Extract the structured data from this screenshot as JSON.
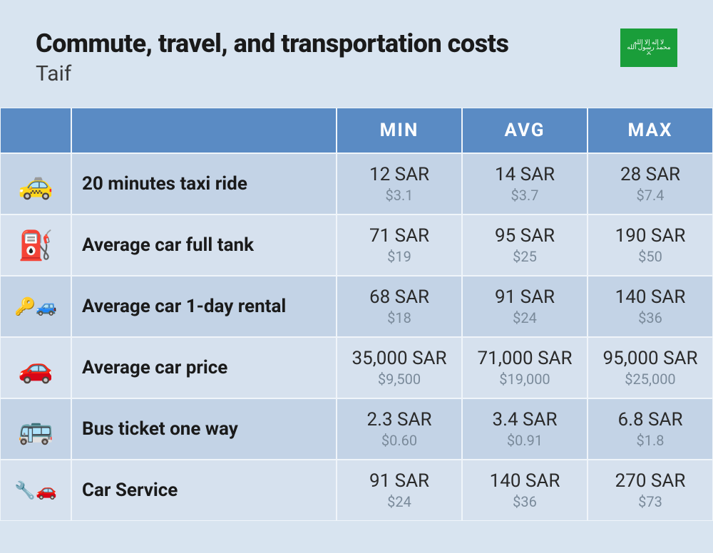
{
  "header": {
    "title": "Commute, travel, and transportation costs",
    "subtitle": "Taif",
    "flag_color": "#1a9e3a"
  },
  "columns": {
    "min": "MIN",
    "avg": "AVG",
    "max": "MAX"
  },
  "rows": [
    {
      "icon": "🚕",
      "label": "20 minutes taxi ride",
      "min": {
        "primary": "12 SAR",
        "secondary": "$3.1"
      },
      "avg": {
        "primary": "14 SAR",
        "secondary": "$3.7"
      },
      "max": {
        "primary": "28 SAR",
        "secondary": "$7.4"
      }
    },
    {
      "icon": "⛽",
      "label": "Average car full tank",
      "min": {
        "primary": "71 SAR",
        "secondary": "$19"
      },
      "avg": {
        "primary": "95 SAR",
        "secondary": "$25"
      },
      "max": {
        "primary": "190 SAR",
        "secondary": "$50"
      }
    },
    {
      "icon": "🔑🚙",
      "label": "Average car 1-day rental",
      "min": {
        "primary": "68 SAR",
        "secondary": "$18"
      },
      "avg": {
        "primary": "91 SAR",
        "secondary": "$24"
      },
      "max": {
        "primary": "140 SAR",
        "secondary": "$36"
      }
    },
    {
      "icon": "🚗",
      "label": "Average car price",
      "min": {
        "primary": "35,000 SAR",
        "secondary": "$9,500"
      },
      "avg": {
        "primary": "71,000 SAR",
        "secondary": "$19,000"
      },
      "max": {
        "primary": "95,000 SAR",
        "secondary": "$25,000"
      }
    },
    {
      "icon": "🚌",
      "label": "Bus ticket one way",
      "min": {
        "primary": "2.3 SAR",
        "secondary": "$0.60"
      },
      "avg": {
        "primary": "3.4 SAR",
        "secondary": "$0.91"
      },
      "max": {
        "primary": "6.8 SAR",
        "secondary": "$1.8"
      }
    },
    {
      "icon": "🔧🚗",
      "label": "Car Service",
      "min": {
        "primary": "91 SAR",
        "secondary": "$24"
      },
      "avg": {
        "primary": "140 SAR",
        "secondary": "$36"
      },
      "max": {
        "primary": "270 SAR",
        "secondary": "$73"
      }
    }
  ],
  "styling": {
    "background_color": "#d8e4f0",
    "header_bg": "#5a8bc4",
    "header_text": "#ffffff",
    "row_odd_bg": "#c3d3e6",
    "row_even_bg": "#d6e1ee",
    "primary_text": "#2a2a2a",
    "secondary_text": "#7a8a9a",
    "title_fontsize": 36,
    "subtitle_fontsize": 30,
    "header_fontsize": 26,
    "label_fontsize": 26,
    "primary_val_fontsize": 26,
    "secondary_val_fontsize": 20
  }
}
